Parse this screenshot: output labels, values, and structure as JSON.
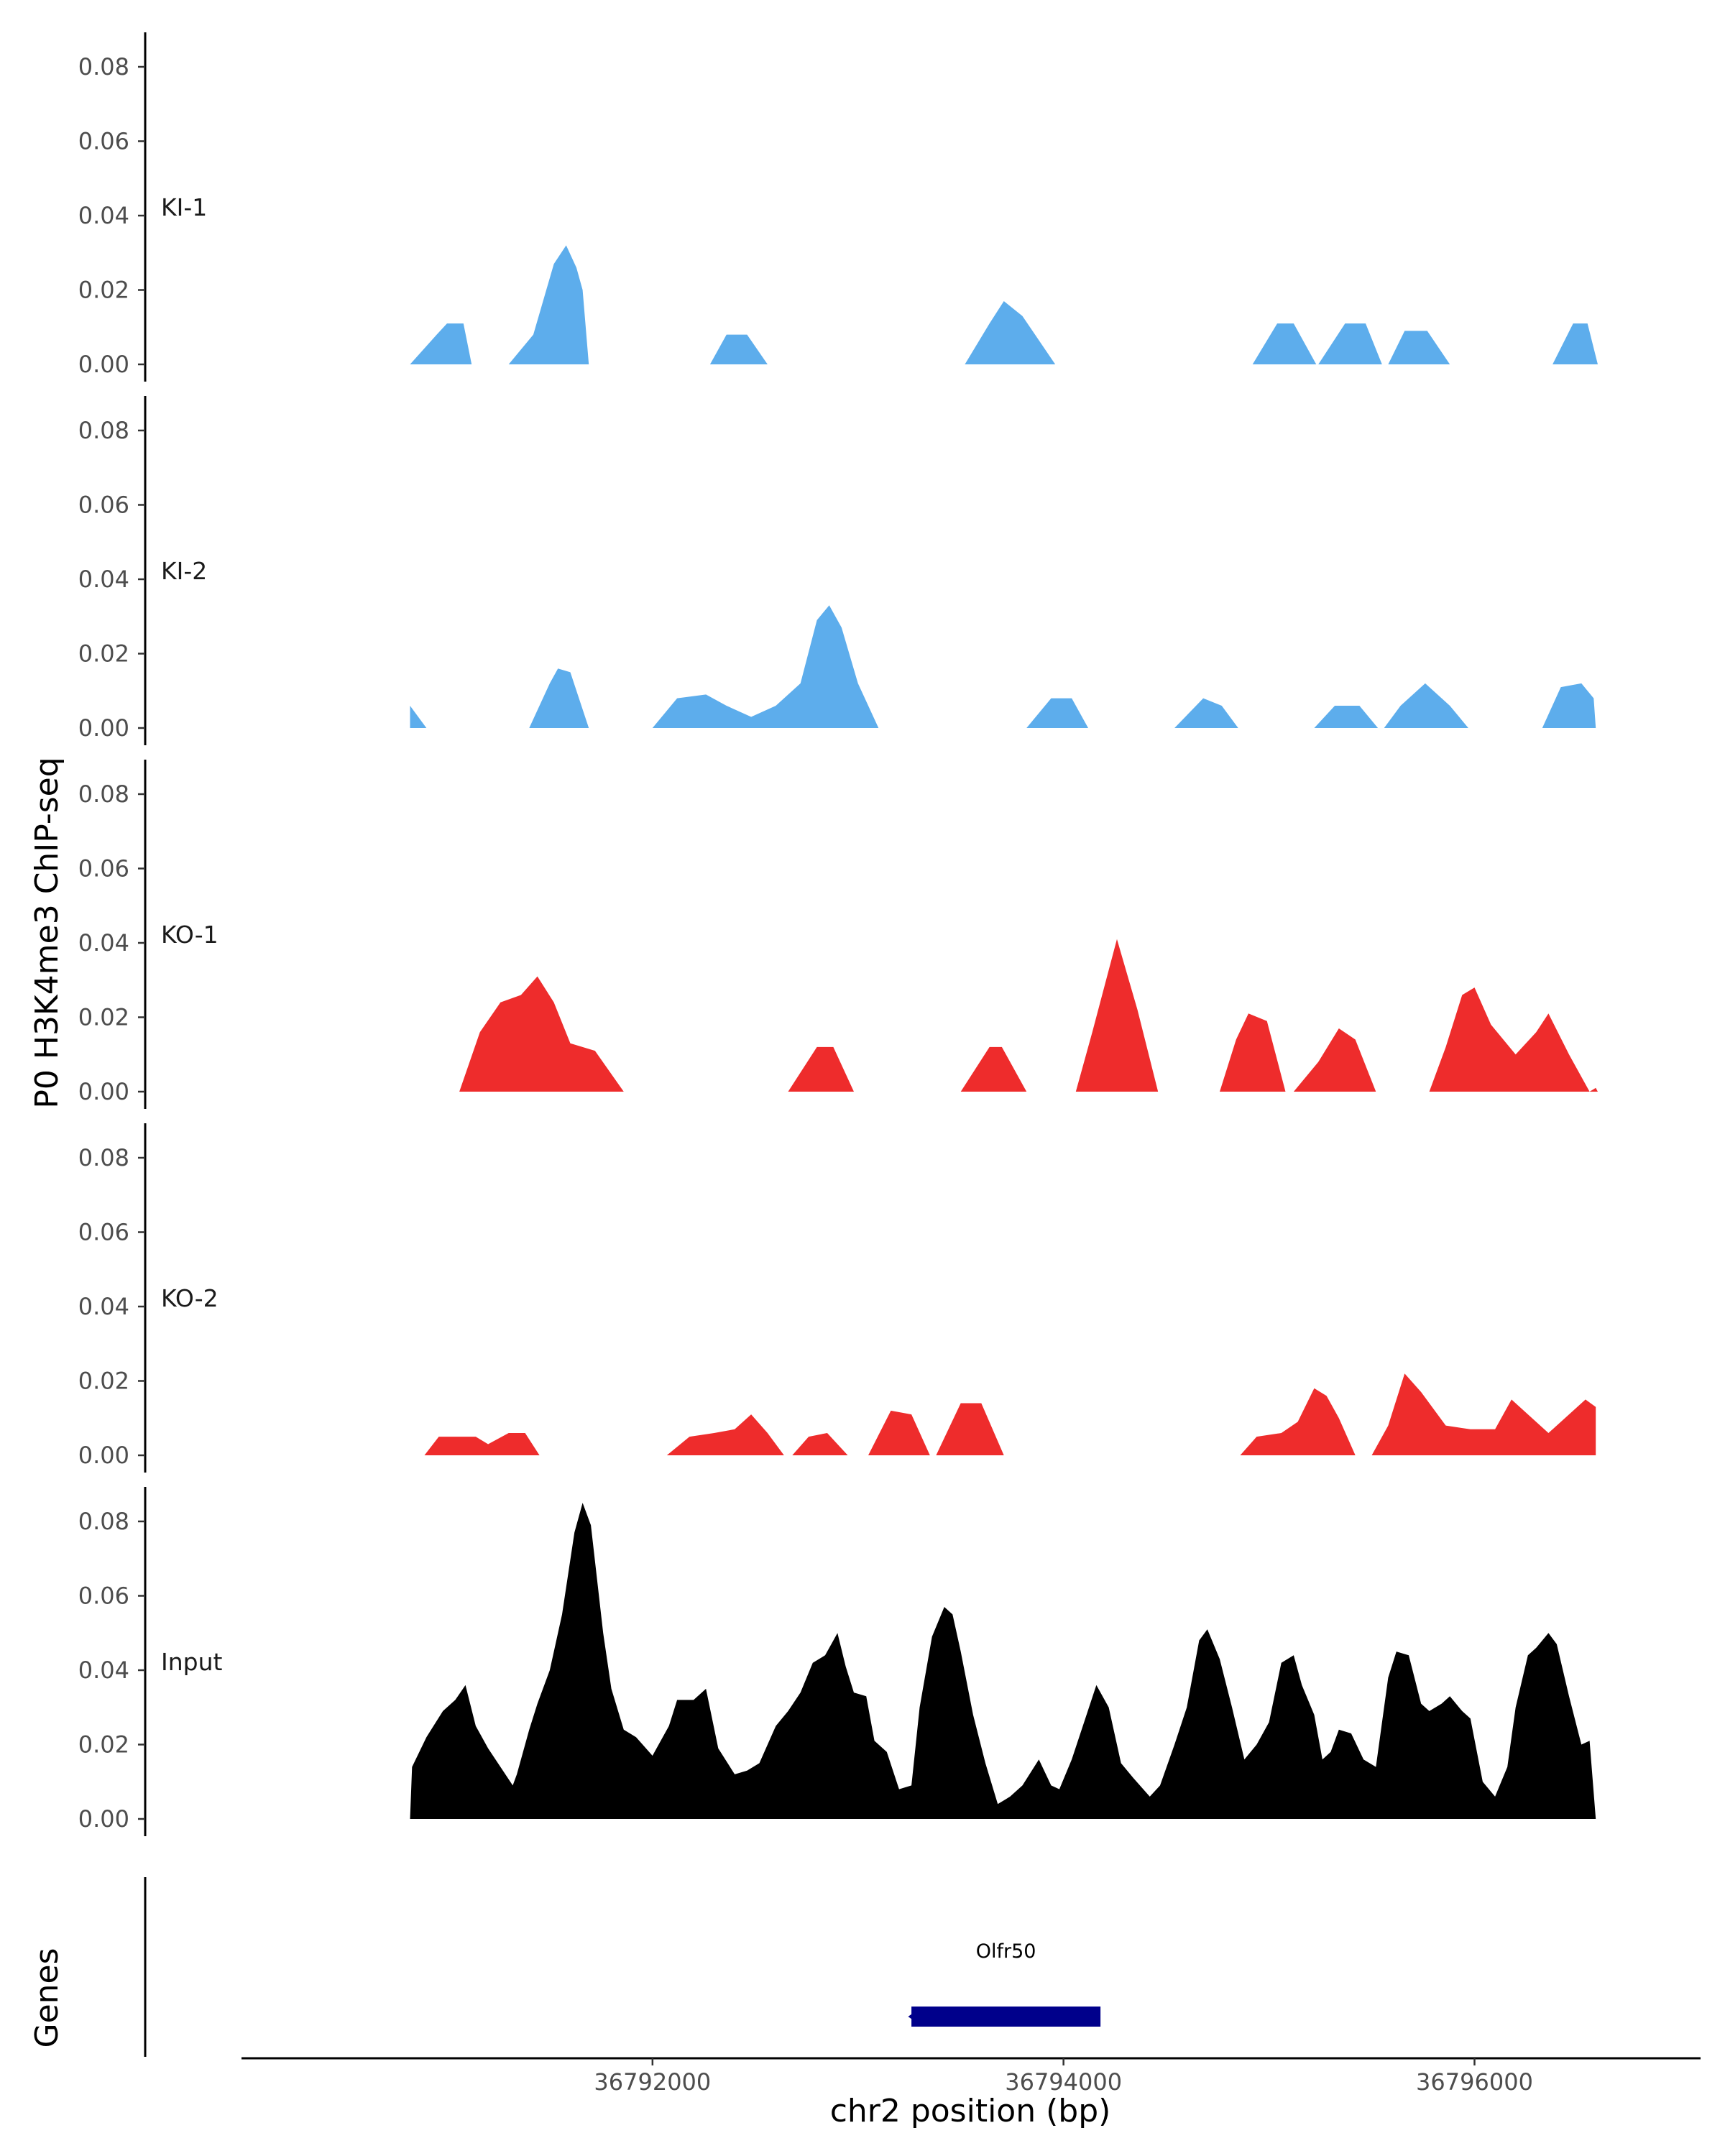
{
  "chart_data": {
    "type": "area",
    "ylabel": "P0 H3K4me3 ChIP-seq",
    "xlabel": "chr2 position (bp)",
    "xlim": [
      36790000,
      36797100
    ],
    "ylim": [
      0,
      0.088
    ],
    "y_ticks": [
      "0.00",
      "0.02",
      "0.04",
      "0.06",
      "0.08"
    ],
    "y_tick_values": [
      0,
      0.02,
      0.04,
      0.06,
      0.08
    ],
    "x_ticks": [
      "36792000",
      "36794000",
      "36796000"
    ],
    "x_tick_values": [
      36792000,
      36794000,
      36796000
    ],
    "colors": {
      "KI": "#5DADEC",
      "KO": "#EE2C2C",
      "Input": "#000000",
      "gene": "#00008B"
    },
    "tracks": [
      {
        "name": "KI-1",
        "color": "#5DADEC",
        "points": [
          [
            36790820,
            0
          ],
          [
            36790950,
            0.008
          ],
          [
            36791000,
            0.011
          ],
          [
            36791080,
            0.011
          ],
          [
            36791120,
            0
          ],
          [
            36791300,
            0
          ],
          [
            36791420,
            0.008
          ],
          [
            36791520,
            0.027
          ],
          [
            36791580,
            0.032
          ],
          [
            36791630,
            0.026
          ],
          [
            36791660,
            0.02
          ],
          [
            36791690,
            0
          ],
          [
            36792280,
            0
          ],
          [
            36792360,
            0.008
          ],
          [
            36792460,
            0.008
          ],
          [
            36792560,
            0
          ],
          [
            36793520,
            0
          ],
          [
            36793640,
            0.011
          ],
          [
            36793710,
            0.017
          ],
          [
            36793800,
            0.013
          ],
          [
            36793960,
            0
          ],
          [
            36794920,
            0
          ],
          [
            36795040,
            0.011
          ],
          [
            36795120,
            0.011
          ],
          [
            36795230,
            0
          ],
          [
            36795240,
            0
          ],
          [
            36795370,
            0.011
          ],
          [
            36795470,
            0.011
          ],
          [
            36795550,
            0
          ],
          [
            36795580,
            0
          ],
          [
            36795660,
            0.009
          ],
          [
            36795770,
            0.009
          ],
          [
            36795880,
            0
          ],
          [
            36796380,
            0
          ],
          [
            36796480,
            0.011
          ],
          [
            36796550,
            0.011
          ],
          [
            36796600,
            0
          ]
        ]
      },
      {
        "name": "KI-2",
        "color": "#5DADEC",
        "points": [
          [
            36790820,
            0
          ],
          [
            36790820,
            0.006
          ],
          [
            36790900,
            0
          ],
          [
            36791400,
            0
          ],
          [
            36791500,
            0.012
          ],
          [
            36791540,
            0.016
          ],
          [
            36791600,
            0.015
          ],
          [
            36791690,
            0
          ],
          [
            36792000,
            0
          ],
          [
            36792120,
            0.008
          ],
          [
            36792260,
            0.009
          ],
          [
            36792360,
            0.006
          ],
          [
            36792480,
            0.003
          ],
          [
            36792600,
            0.006
          ],
          [
            36792720,
            0.012
          ],
          [
            36792800,
            0.029
          ],
          [
            36792860,
            0.033
          ],
          [
            36792920,
            0.027
          ],
          [
            36793000,
            0.012
          ],
          [
            36793100,
            0
          ],
          [
            36793820,
            0
          ],
          [
            36793940,
            0.008
          ],
          [
            36794040,
            0.008
          ],
          [
            36794120,
            0
          ],
          [
            36794540,
            0
          ],
          [
            36794680,
            0.008
          ],
          [
            36794770,
            0.006
          ],
          [
            36794850,
            0
          ],
          [
            36795220,
            0
          ],
          [
            36795320,
            0.006
          ],
          [
            36795440,
            0.006
          ],
          [
            36795530,
            0
          ],
          [
            36795560,
            0
          ],
          [
            36795640,
            0.006
          ],
          [
            36795760,
            0.012
          ],
          [
            36795880,
            0.006
          ],
          [
            36795970,
            0
          ],
          [
            36796330,
            0
          ],
          [
            36796420,
            0.011
          ],
          [
            36796520,
            0.012
          ],
          [
            36796580,
            0.008
          ],
          [
            36796590,
            0
          ]
        ]
      },
      {
        "name": "KO-1",
        "color": "#EE2C2C",
        "points": [
          [
            36791060,
            0
          ],
          [
            36791160,
            0.016
          ],
          [
            36791260,
            0.024
          ],
          [
            36791360,
            0.026
          ],
          [
            36791440,
            0.031
          ],
          [
            36791520,
            0.024
          ],
          [
            36791600,
            0.013
          ],
          [
            36791720,
            0.011
          ],
          [
            36791860,
            0
          ],
          [
            36792660,
            0
          ],
          [
            36792800,
            0.012
          ],
          [
            36792880,
            0.012
          ],
          [
            36792980,
            0
          ],
          [
            36793500,
            0
          ],
          [
            36793640,
            0.012
          ],
          [
            36793700,
            0.012
          ],
          [
            36793820,
            0
          ],
          [
            36794060,
            0
          ],
          [
            36794140,
            0.016
          ],
          [
            36794260,
            0.041
          ],
          [
            36794360,
            0.022
          ],
          [
            36794460,
            0
          ],
          [
            36794760,
            0
          ],
          [
            36794840,
            0.014
          ],
          [
            36794900,
            0.021
          ],
          [
            36794990,
            0.019
          ],
          [
            36795080,
            0
          ],
          [
            36795120,
            0
          ],
          [
            36795240,
            0.008
          ],
          [
            36795340,
            0.017
          ],
          [
            36795420,
            0.014
          ],
          [
            36795520,
            0
          ],
          [
            36795780,
            0
          ],
          [
            36795860,
            0.012
          ],
          [
            36795940,
            0.026
          ],
          [
            36796000,
            0.028
          ],
          [
            36796080,
            0.018
          ],
          [
            36796200,
            0.01
          ],
          [
            36796300,
            0.016
          ],
          [
            36796360,
            0.021
          ],
          [
            36796460,
            0.01
          ],
          [
            36796560,
            0
          ],
          [
            36796560,
            0
          ],
          [
            36796590,
            0.001
          ],
          [
            36796600,
            0
          ]
        ]
      },
      {
        "name": "KO-2",
        "color": "#EE2C2C",
        "points": [
          [
            36790890,
            0
          ],
          [
            36790960,
            0.005
          ],
          [
            36791040,
            0.005
          ],
          [
            36791140,
            0.005
          ],
          [
            36791200,
            0.003
          ],
          [
            36791300,
            0.006
          ],
          [
            36791380,
            0.006
          ],
          [
            36791450,
            0
          ],
          [
            36792070,
            0
          ],
          [
            36792180,
            0.005
          ],
          [
            36792300,
            0.006
          ],
          [
            36792400,
            0.007
          ],
          [
            36792480,
            0.011
          ],
          [
            36792560,
            0.006
          ],
          [
            36792640,
            0
          ],
          [
            36792680,
            0
          ],
          [
            36792760,
            0.005
          ],
          [
            36792850,
            0.006
          ],
          [
            36792950,
            0
          ],
          [
            36793050,
            0
          ],
          [
            36793160,
            0.012
          ],
          [
            36793260,
            0.011
          ],
          [
            36793350,
            0
          ],
          [
            36793380,
            0
          ],
          [
            36793500,
            0.014
          ],
          [
            36793600,
            0.014
          ],
          [
            36793710,
            0
          ],
          [
            36794860,
            0
          ],
          [
            36794940,
            0.005
          ],
          [
            36795060,
            0.006
          ],
          [
            36795140,
            0.009
          ],
          [
            36795220,
            0.018
          ],
          [
            36795280,
            0.016
          ],
          [
            36795340,
            0.01
          ],
          [
            36795420,
            0
          ],
          [
            36795500,
            0
          ],
          [
            36795580,
            0.008
          ],
          [
            36795660,
            0.022
          ],
          [
            36795740,
            0.017
          ],
          [
            36795860,
            0.008
          ],
          [
            36795980,
            0.007
          ],
          [
            36796100,
            0.007
          ],
          [
            36796180,
            0.015
          ],
          [
            36796280,
            0.01
          ],
          [
            36796360,
            0.006
          ],
          [
            36796460,
            0.011
          ],
          [
            36796540,
            0.015
          ],
          [
            36796590,
            0.013
          ],
          [
            36796590,
            0
          ]
        ]
      },
      {
        "name": "Input",
        "color": "#000000",
        "points": [
          [
            36790820,
            0
          ],
          [
            36790830,
            0.014
          ],
          [
            36790900,
            0.022
          ],
          [
            36790980,
            0.029
          ],
          [
            36791040,
            0.032
          ],
          [
            36791090,
            0.036
          ],
          [
            36791140,
            0.025
          ],
          [
            36791200,
            0.019
          ],
          [
            36791260,
            0.014
          ],
          [
            36791320,
            0.009
          ],
          [
            36791340,
            0.012
          ],
          [
            36791400,
            0.024
          ],
          [
            36791440,
            0.031
          ],
          [
            36791500,
            0.04
          ],
          [
            36791560,
            0.055
          ],
          [
            36791620,
            0.077
          ],
          [
            36791660,
            0.085
          ],
          [
            36791700,
            0.079
          ],
          [
            36791760,
            0.05
          ],
          [
            36791800,
            0.035
          ],
          [
            36791860,
            0.024
          ],
          [
            36791920,
            0.022
          ],
          [
            36792000,
            0.017
          ],
          [
            36792080,
            0.025
          ],
          [
            36792120,
            0.032
          ],
          [
            36792200,
            0.032
          ],
          [
            36792260,
            0.035
          ],
          [
            36792320,
            0.019
          ],
          [
            36792400,
            0.012
          ],
          [
            36792460,
            0.013
          ],
          [
            36792520,
            0.015
          ],
          [
            36792600,
            0.025
          ],
          [
            36792660,
            0.029
          ],
          [
            36792720,
            0.034
          ],
          [
            36792780,
            0.042
          ],
          [
            36792840,
            0.044
          ],
          [
            36792900,
            0.05
          ],
          [
            36792940,
            0.041
          ],
          [
            36792980,
            0.034
          ],
          [
            36793040,
            0.033
          ],
          [
            36793080,
            0.021
          ],
          [
            36793140,
            0.018
          ],
          [
            36793200,
            0.008
          ],
          [
            36793260,
            0.009
          ],
          [
            36793300,
            0.03
          ],
          [
            36793360,
            0.049
          ],
          [
            36793420,
            0.057
          ],
          [
            36793460,
            0.055
          ],
          [
            36793500,
            0.045
          ],
          [
            36793560,
            0.028
          ],
          [
            36793620,
            0.015
          ],
          [
            36793680,
            0.004
          ],
          [
            36793740,
            0.006
          ],
          [
            36793800,
            0.009
          ],
          [
            36793880,
            0.016
          ],
          [
            36793940,
            0.009
          ],
          [
            36793980,
            0.008
          ],
          [
            36794040,
            0.016
          ],
          [
            36794100,
            0.026
          ],
          [
            36794160,
            0.036
          ],
          [
            36794220,
            0.03
          ],
          [
            36794280,
            0.015
          ],
          [
            36794340,
            0.011
          ],
          [
            36794420,
            0.006
          ],
          [
            36794470,
            0.009
          ],
          [
            36794540,
            0.02
          ],
          [
            36794600,
            0.03
          ],
          [
            36794660,
            0.048
          ],
          [
            36794700,
            0.051
          ],
          [
            36794760,
            0.043
          ],
          [
            36794820,
            0.03
          ],
          [
            36794880,
            0.016
          ],
          [
            36794940,
            0.02
          ],
          [
            36795000,
            0.026
          ],
          [
            36795060,
            0.042
          ],
          [
            36795120,
            0.044
          ],
          [
            36795160,
            0.036
          ],
          [
            36795220,
            0.028
          ],
          [
            36795260,
            0.016
          ],
          [
            36795300,
            0.018
          ],
          [
            36795340,
            0.024
          ],
          [
            36795400,
            0.023
          ],
          [
            36795460,
            0.016
          ],
          [
            36795520,
            0.014
          ],
          [
            36795580,
            0.038
          ],
          [
            36795620,
            0.045
          ],
          [
            36795680,
            0.044
          ],
          [
            36795740,
            0.031
          ],
          [
            36795780,
            0.029
          ],
          [
            36795840,
            0.031
          ],
          [
            36795880,
            0.033
          ],
          [
            36795940,
            0.029
          ],
          [
            36795980,
            0.027
          ],
          [
            36796040,
            0.01
          ],
          [
            36796100,
            0.006
          ],
          [
            36796160,
            0.014
          ],
          [
            36796200,
            0.03
          ],
          [
            36796260,
            0.044
          ],
          [
            36796300,
            0.046
          ],
          [
            36796360,
            0.05
          ],
          [
            36796400,
            0.047
          ],
          [
            36796460,
            0.033
          ],
          [
            36796520,
            0.02
          ],
          [
            36796560,
            0.021
          ],
          [
            36796590,
            0
          ]
        ]
      }
    ],
    "genes_track": {
      "label": "Genes",
      "genes": [
        {
          "name": "Olfr50",
          "start": 36793260,
          "end": 36794180
        }
      ]
    }
  }
}
